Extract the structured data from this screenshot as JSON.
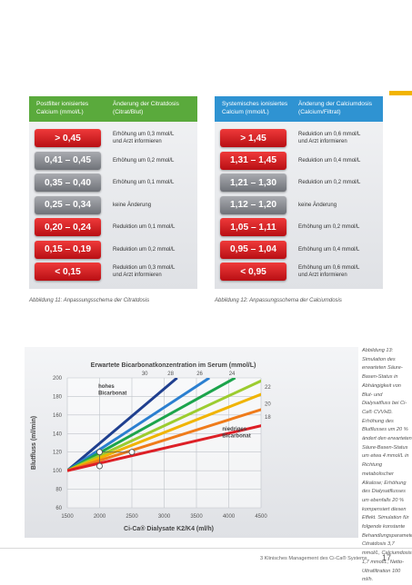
{
  "tables": [
    {
      "header_color": "#5aaa3c",
      "header": {
        "col1": "Postfilter ionisiertes\nCalcium (mmol/L)",
        "col2": "Änderung der Citratdosis\n(Citrat/Blut)"
      },
      "rows": [
        {
          "value": "> 0,45",
          "action": "Erhöhung um 0,3 mmol/L\nund Arzt informieren",
          "style": "red"
        },
        {
          "value": "0,41 – 0,45",
          "action": "Erhöhung um 0,2 mmol/L",
          "style": "grey"
        },
        {
          "value": "0,35 – 0,40",
          "action": "Erhöhung um 0,1 mmol/L",
          "style": "grey"
        },
        {
          "value": "0,25 – 0,34",
          "action": "keine Änderung",
          "style": "grey"
        },
        {
          "value": "0,20 – 0,24",
          "action": "Reduktion um 0,1 mmol/L",
          "style": "red"
        },
        {
          "value": "0,15 – 0,19",
          "action": "Reduktion um 0,2 mmol/L",
          "style": "red"
        },
        {
          "value": "< 0,15",
          "action": "Reduktion um 0,3 mmol/L\nund Arzt informieren",
          "style": "red"
        }
      ],
      "caption": "Abbildung 11: Anpassungsschema der Citratdosis"
    },
    {
      "header_color": "#2f93d2",
      "header": {
        "col1": "Systemisches ionisiertes\nCalcium (mmol/L)",
        "col2": "Änderung der Calciumdosis\n(Calcium/Filtrat)"
      },
      "rows": [
        {
          "value": "> 1,45",
          "action": "Reduktion um 0,6 mmol/L\nund Arzt informieren",
          "style": "red"
        },
        {
          "value": "1,31 – 1,45",
          "action": "Reduktion um 0,4 mmol/L",
          "style": "red"
        },
        {
          "value": "1,21 – 1,30",
          "action": "Reduktion um 0,2 mmol/L",
          "style": "grey"
        },
        {
          "value": "1,12 – 1,20",
          "action": "keine Änderung",
          "style": "grey"
        },
        {
          "value": "1,05 – 1,11",
          "action": "Erhöhung um 0,2 mmol/L",
          "style": "red"
        },
        {
          "value": "0,95 – 1,04",
          "action": "Erhöhung um 0,4 mmol/L",
          "style": "red"
        },
        {
          "value": "< 0,95",
          "action": "Erhöhung um 0,6 mmol/L\nund Arzt informieren",
          "style": "red"
        }
      ],
      "caption": "Abbildung 12: Anpassungsschema der Calciumdosis"
    }
  ],
  "chart_data": {
    "type": "line",
    "title": "Erwartete Bicarbonatkonzentration im Serum (mmol/L)",
    "xlabel": "Ci-Ca® Dialysate K2/K4 (ml/h)",
    "ylabel": "Blutfluss (ml/min)",
    "xlim": [
      1500,
      4500
    ],
    "ylim": [
      60,
      200
    ],
    "x_ticks": [
      "1500",
      "2000",
      "2500",
      "3000",
      "3500",
      "4000",
      "4500"
    ],
    "y_ticks": [
      "200",
      "180",
      "160",
      "140",
      "120",
      "100",
      "80",
      "60"
    ],
    "top_labels": [
      "30",
      "28",
      "26",
      "24"
    ],
    "right_labels": [
      "22",
      "20",
      "18"
    ],
    "annotations": {
      "high": "hohes\nBicarbonat",
      "low": "niedriges\nBicarbonat"
    },
    "series": [
      {
        "color": "#1f3f8f",
        "x": [
          1500,
          3200
        ],
        "y": [
          100,
          200
        ]
      },
      {
        "color": "#2b7fd0",
        "x": [
          1500,
          3700
        ],
        "y": [
          100,
          200
        ]
      },
      {
        "color": "#1ca44b",
        "x": [
          1500,
          4100
        ],
        "y": [
          100,
          200
        ]
      },
      {
        "color": "#9ccc2f",
        "x": [
          1500,
          4600
        ],
        "y": [
          100,
          200
        ]
      },
      {
        "color": "#f0b400",
        "x": [
          1500,
          4600
        ],
        "y": [
          100,
          185
        ]
      },
      {
        "color": "#ef7b1a",
        "x": [
          1500,
          4600
        ],
        "y": [
          100,
          168
        ]
      },
      {
        "color": "#dd1f26",
        "x": [
          1500,
          4600
        ],
        "y": [
          100,
          150
        ]
      }
    ],
    "markers": [
      {
        "x": 2000,
        "y": 120
      },
      {
        "x": 2500,
        "y": 120
      },
      {
        "x": 2000,
        "y": 105
      }
    ]
  },
  "side_text": "Abbildung 13: Simulation des erwarteten Säure-Basen-Status in Abhängigkeit von Blut- und Dialysatfluss bei Ci-Ca® CVVHD. Erhöhung des Blutflusses um 20 % ändert den erwarteten Säure-Basen-Status um etwa 4 mmol/L in Richtung metabolischer Alkalose; Erhöhung des Dialysatflusses um ebenfalls 20 % kompensiert diesen Effekt. Simulation für folgende konstante Behandlungsparameter: Citratdosis 3,7 mmol/L, Calciumdosis 1,7 mmol/L, Netto-Ultrafiltration 100 ml/h.",
  "footer": "3   Klinisches Management des Ci-Ca® Systems",
  "page_number": "17"
}
